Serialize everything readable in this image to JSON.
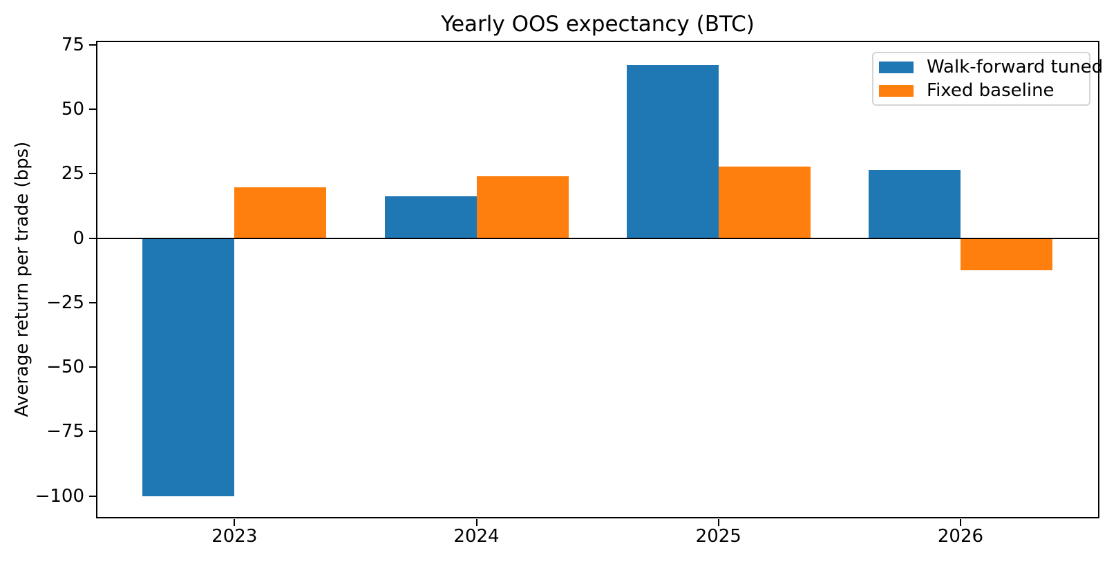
{
  "figure": {
    "title": "Yearly OOS expectancy (BTC)",
    "y_axis_label": "Average return per trade (bps)"
  },
  "chart_data": {
    "type": "bar",
    "title": "Yearly OOS expectancy (BTC)",
    "xlabel": "",
    "ylabel": "Average return per trade (bps)",
    "categories": [
      "2023",
      "2024",
      "2025",
      "2026"
    ],
    "series": [
      {
        "name": "Walk-forward tuned",
        "color": "#1f77b4",
        "values": [
          -100,
          16.2,
          67.1,
          26.5
        ]
      },
      {
        "name": "Fixed baseline",
        "color": "#ff7f0e",
        "values": [
          19.7,
          24.1,
          27.7,
          -12.4
        ]
      }
    ],
    "yticks": [
      {
        "value": 75,
        "label": "75"
      },
      {
        "value": 50,
        "label": "50"
      },
      {
        "value": 25,
        "label": "25"
      },
      {
        "value": 0,
        "label": "0"
      },
      {
        "value": -25,
        "label": "−25"
      },
      {
        "value": -50,
        "label": "−50"
      },
      {
        "value": -75,
        "label": "−75"
      },
      {
        "value": -100,
        "label": "−100"
      }
    ],
    "ylim": [
      -108.4,
      76.3
    ],
    "grid": false,
    "zero_line": true,
    "bar_width_fraction": 0.38,
    "legend": {
      "position": "upper right",
      "entries": [
        "Walk-forward tuned",
        "Fixed baseline"
      ]
    }
  }
}
